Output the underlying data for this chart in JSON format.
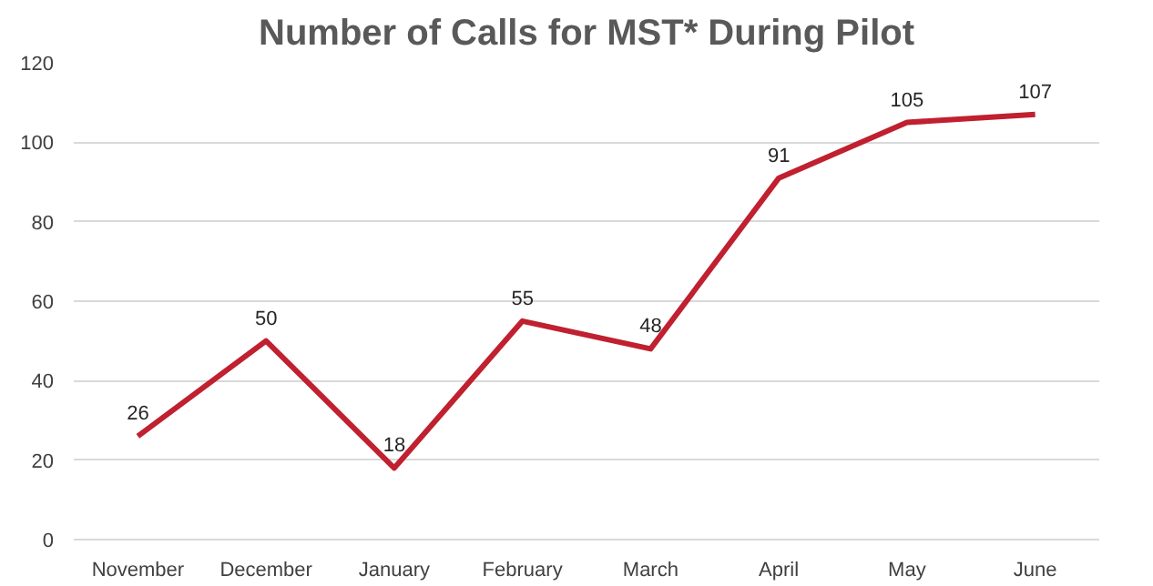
{
  "chart_data": {
    "type": "line",
    "title": "Number of Calls for MST* During Pilot",
    "categories": [
      "November",
      "December",
      "January",
      "February",
      "March",
      "April",
      "May",
      "June"
    ],
    "series": [
      {
        "color": "#c0202f",
        "values": [
          26,
          50,
          18,
          55,
          48,
          91,
          105,
          107
        ]
      }
    ],
    "ylim": [
      0,
      120
    ],
    "yticks": [
      0,
      20,
      40,
      60,
      80,
      100,
      120
    ],
    "grid": "y",
    "marker": "none",
    "line_style": "solid",
    "data_labels": true
  }
}
